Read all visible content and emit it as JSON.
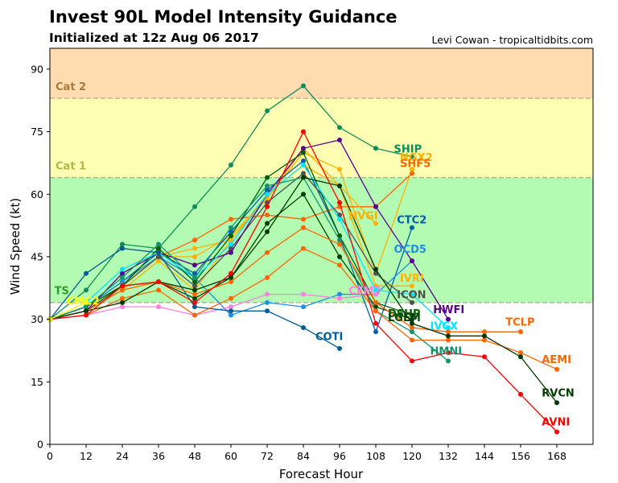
{
  "header": {
    "title": "Invest 90L Model Intensity Guidance",
    "subtitle": "Initialized at 12z Aug 06 2017",
    "credit": "Levi Cowan - tropicaltidbits.com"
  },
  "chart_data": {
    "type": "line",
    "title": "Invest 90L Model Intensity Guidance",
    "subtitle": "Initialized at 12z Aug 06 2017",
    "xlabel": "Forecast Hour",
    "ylabel": "Wind Speed (kt)",
    "xlim": [
      0,
      180
    ],
    "ylim": [
      0,
      95
    ],
    "xticks": [
      0,
      12,
      24,
      36,
      48,
      60,
      72,
      84,
      96,
      108,
      120,
      132,
      144,
      156,
      168
    ],
    "yticks": [
      0,
      15,
      30,
      45,
      60,
      75,
      90
    ],
    "grid": false,
    "bands": [
      {
        "name": "TS",
        "from": 34,
        "to": 64,
        "color": "#b3fbb3",
        "label_color": "#2ca02c"
      },
      {
        "name": "Cat 1",
        "from": 64,
        "to": 83,
        "color": "#ffffb3",
        "label_color": "#b5b54a"
      },
      {
        "name": "Cat 2",
        "from": 83,
        "to": 96,
        "color": "#ffdcb0",
        "label_color": "#a87a3c"
      }
    ],
    "series": [
      {
        "name": "SHIP",
        "color": "#0e8c5a",
        "x": [
          0,
          12,
          24,
          36,
          48,
          60,
          72,
          84,
          96,
          108,
          120
        ],
        "y": [
          30,
          37,
          48,
          47,
          57,
          67,
          80,
          86,
          76,
          71,
          69
        ]
      },
      {
        "name": "NGX2",
        "color": "#ffb000",
        "x": [
          0,
          12,
          24,
          36,
          48,
          60,
          72,
          84,
          96,
          108,
          120
        ],
        "y": [
          30,
          33,
          38,
          45,
          47,
          49,
          59,
          70,
          66,
          41,
          66
        ]
      },
      {
        "name": "SHF5",
        "color": "#ff6600",
        "x": [
          0,
          12,
          24,
          36,
          48,
          60,
          72,
          84,
          96,
          108,
          120
        ],
        "y": [
          30,
          33,
          38,
          45,
          49,
          54,
          55,
          54,
          57,
          57,
          65
        ]
      },
      {
        "name": "NVGI",
        "color": "#ffb000",
        "x": [
          0,
          12,
          24,
          36,
          48,
          60,
          72,
          84,
          96,
          108
        ],
        "y": [
          30,
          33,
          39,
          45,
          45,
          50,
          59,
          71,
          62,
          53
        ]
      },
      {
        "name": "CTC2",
        "color": "#0060a8",
        "x": [
          0,
          12,
          24,
          36,
          48,
          60,
          72,
          84,
          96,
          108,
          120
        ],
        "y": [
          30,
          33,
          39,
          46,
          41,
          51,
          61,
          68,
          50,
          27,
          52
        ]
      },
      {
        "name": "OCD5",
        "color": "#1e90e0",
        "x": [
          0,
          12,
          24,
          36,
          48,
          60,
          72,
          84,
          96,
          108,
          120
        ],
        "y": [
          30,
          33,
          39,
          45,
          40,
          31,
          34,
          33,
          36,
          36,
          44
        ]
      },
      {
        "name": "IVRI",
        "color": "#ffb000",
        "x": [
          0,
          12,
          24,
          36,
          48,
          60,
          72,
          84,
          96,
          108,
          120
        ],
        "y": [
          30,
          32,
          37,
          44,
          37,
          49,
          60,
          67,
          62,
          38,
          38
        ]
      },
      {
        "name": "CEM2",
        "color": "#ff80e0",
        "x": [
          0,
          12,
          24,
          36,
          48,
          60,
          72,
          84,
          96,
          108
        ],
        "y": [
          30,
          31,
          33,
          33,
          31,
          33,
          36,
          36,
          35,
          36
        ]
      },
      {
        "name": "ICON",
        "color": "#505050",
        "x": [
          0,
          12,
          24,
          36,
          48,
          60,
          72,
          84,
          96,
          108,
          120
        ],
        "y": [
          30,
          33,
          38,
          45,
          38,
          47,
          58,
          65,
          55,
          41,
          34
        ]
      },
      {
        "name": "HWFI",
        "color": "#5a0090",
        "x": [
          0,
          12,
          24,
          36,
          48,
          60,
          72,
          84,
          96,
          108,
          120,
          132
        ],
        "y": [
          30,
          32,
          41,
          46,
          43,
          46,
          60,
          71,
          73,
          57,
          44,
          30
        ]
      },
      {
        "name": "DSHP",
        "color": "#006000",
        "x": [
          0,
          12,
          24,
          36,
          48,
          60,
          72,
          84,
          96,
          108,
          120
        ],
        "y": [
          30,
          33,
          38,
          47,
          39,
          50,
          64,
          70,
          50,
          34,
          31
        ]
      },
      {
        "name": "LGEM",
        "color": "#004000",
        "x": [
          0,
          12,
          24,
          36,
          48,
          60,
          72,
          84,
          96,
          108,
          120
        ],
        "y": [
          30,
          32,
          38,
          39,
          35,
          40,
          53,
          60,
          45,
          33,
          30
        ]
      },
      {
        "name": "IVCX",
        "color": "#00e5ff",
        "x": [
          0,
          12,
          24,
          36,
          48,
          60,
          72,
          84,
          96,
          108,
          120,
          132
        ],
        "y": [
          30,
          34,
          42,
          46,
          40,
          48,
          60,
          67,
          54,
          37,
          36,
          28
        ]
      },
      {
        "name": "HMNI",
        "color": "#14946e",
        "x": [
          0,
          12,
          24,
          36,
          48,
          60,
          72,
          84,
          96,
          108,
          120,
          132
        ],
        "y": [
          30,
          33,
          40,
          48,
          40,
          52,
          62,
          64,
          49,
          32,
          27,
          20
        ]
      },
      {
        "name": "COTI",
        "color": "#005c96",
        "x": [
          0,
          12,
          24,
          36,
          48,
          60,
          72,
          84,
          96
        ],
        "y": [
          30,
          41,
          47,
          46,
          33,
          32,
          32,
          28,
          23
        ]
      },
      {
        "name": "TCLP",
        "color": "#ff6600",
        "x": [
          0,
          12,
          24,
          36,
          48,
          60,
          72,
          84,
          96,
          108,
          120,
          132,
          144,
          156
        ],
        "y": [
          30,
          32,
          37,
          39,
          36,
          39,
          46,
          52,
          48,
          34,
          28,
          27,
          27,
          27
        ]
      },
      {
        "name": "AEMI",
        "color": "#ff6600",
        "x": [
          0,
          12,
          24,
          36,
          48,
          60,
          72,
          84,
          96,
          108,
          120,
          132,
          144,
          156,
          168
        ],
        "y": [
          30,
          31,
          35,
          37,
          31,
          35,
          40,
          47,
          43,
          32,
          25,
          25,
          25,
          22,
          18
        ]
      },
      {
        "name": "RVCN",
        "color": "#003a00",
        "x": [
          0,
          12,
          24,
          36,
          48,
          60,
          72,
          84,
          96,
          108,
          120,
          132,
          144,
          156,
          168
        ],
        "y": [
          30,
          32,
          34,
          39,
          37,
          40,
          51,
          64,
          62,
          42,
          29,
          26,
          26,
          21,
          10
        ]
      },
      {
        "name": "AVNI",
        "color": "#ff0000",
        "x": [
          0,
          12,
          24,
          36,
          48,
          60,
          72,
          84,
          96,
          108,
          120,
          132,
          144,
          156,
          168
        ],
        "y": [
          30,
          31,
          38,
          39,
          34,
          41,
          57,
          75,
          58,
          29,
          20,
          22,
          21,
          12,
          3
        ]
      },
      {
        "name": "CMC2",
        "color": "#ffff00",
        "x": [
          0,
          12
        ],
        "y": [
          30,
          34
        ]
      },
      {
        "name": "TS",
        "color": "#2ca02c",
        "x": [],
        "y": []
      }
    ],
    "labels": [
      {
        "text": "SHIP",
        "color": "#0e8c5a",
        "x": 114,
        "y": 70
      },
      {
        "text": "NGX2",
        "color": "#ffb000",
        "x": 116,
        "y": 68
      },
      {
        "text": "SHF5",
        "color": "#ff6600",
        "x": 116,
        "y": 66.5
      },
      {
        "text": "NVGI",
        "color": "#ffb000",
        "x": 99,
        "y": 54
      },
      {
        "text": "CTC2",
        "color": "#0060a8",
        "x": 115,
        "y": 53
      },
      {
        "text": "OCD5",
        "color": "#1e90e0",
        "x": 114,
        "y": 46
      },
      {
        "text": "IVRI",
        "color": "#ffb000",
        "x": 116,
        "y": 39
      },
      {
        "text": "CEM2",
        "color": "#ff80e0",
        "x": 99,
        "y": 36
      },
      {
        "text": "ICON",
        "color": "#505050",
        "x": 115,
        "y": 35
      },
      {
        "text": "HWFI",
        "color": "#5a0090",
        "x": 127,
        "y": 31.5
      },
      {
        "text": "DSHP",
        "color": "#006000",
        "x": 112,
        "y": 30.5
      },
      {
        "text": "LGEM",
        "color": "#004000",
        "x": 112,
        "y": 29.5
      },
      {
        "text": "IVCX",
        "color": "#00e5ff",
        "x": 126,
        "y": 27.5
      },
      {
        "text": "HMNI",
        "color": "#14946e",
        "x": 126,
        "y": 21.5
      },
      {
        "text": "COTI",
        "color": "#005c96",
        "x": 88,
        "y": 25
      },
      {
        "text": "TCLP",
        "color": "#ff6600",
        "x": 151,
        "y": 28.5
      },
      {
        "text": "AEMI",
        "color": "#ff6600",
        "x": 163,
        "y": 19.5
      },
      {
        "text": "RVCN",
        "color": "#003a00",
        "x": 163,
        "y": 11.5
      },
      {
        "text": "AVNI",
        "color": "#ff0000",
        "x": 163,
        "y": 4.5
      },
      {
        "text": "TS",
        "color": "#2ca02c",
        "x": 1.5,
        "y": 36
      },
      {
        "text": "CMC2",
        "color": "#ffff00",
        "x": 5.5,
        "y": 33.5
      }
    ]
  }
}
